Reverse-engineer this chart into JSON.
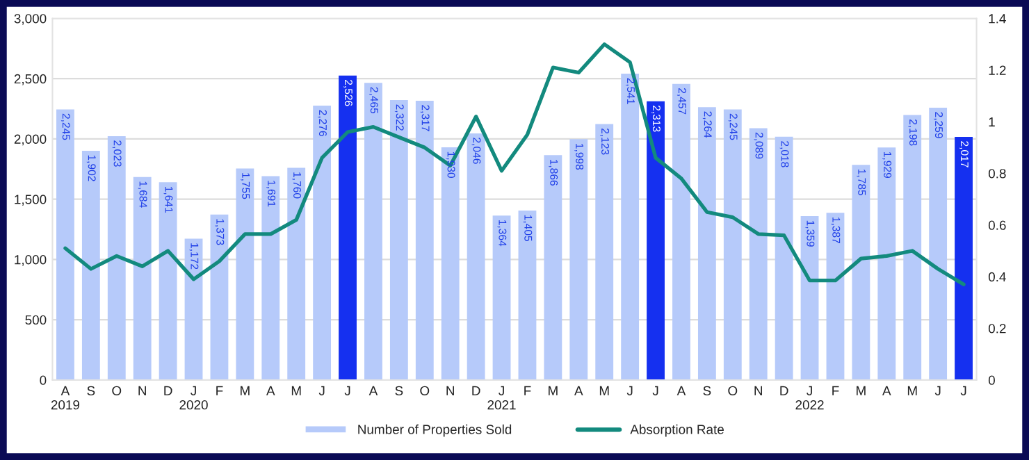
{
  "chart_data": {
    "type": "bar",
    "categories": [
      "A\n2019",
      "S",
      "O",
      "N",
      "D",
      "J\n2020",
      "F",
      "M",
      "A",
      "M",
      "J",
      "J",
      "A",
      "S",
      "O",
      "N",
      "D",
      "J\n2021",
      "F",
      "M",
      "A",
      "M",
      "J",
      "J",
      "A",
      "S",
      "O",
      "N",
      "D",
      "J\n2022",
      "F",
      "M",
      "A",
      "M",
      "J",
      "J"
    ],
    "series": [
      {
        "name": "Number of Properties Sold",
        "color": "#b6cafa",
        "colors": [
          "#b6cafa",
          "#b6cafa",
          "#b6cafa",
          "#b6cafa",
          "#b6cafa",
          "#b6cafa",
          "#b6cafa",
          "#b6cafa",
          "#b6cafa",
          "#b6cafa",
          "#b6cafa",
          "#1530f0",
          "#b6cafa",
          "#b6cafa",
          "#b6cafa",
          "#b6cafa",
          "#b6cafa",
          "#b6cafa",
          "#b6cafa",
          "#b6cafa",
          "#b6cafa",
          "#b6cafa",
          "#b6cafa",
          "#1530f0",
          "#b6cafa",
          "#b6cafa",
          "#b6cafa",
          "#b6cafa",
          "#b6cafa",
          "#b6cafa",
          "#b6cafa",
          "#b6cafa",
          "#b6cafa",
          "#b6cafa",
          "#b6cafa",
          "#1530f0"
        ],
        "values": [
          2245,
          1902,
          2023,
          1684,
          1641,
          1172,
          1373,
          1755,
          1691,
          1760,
          2276,
          2526,
          2465,
          2322,
          2317,
          1930,
          2046,
          1364,
          1405,
          1866,
          1998,
          2123,
          2541,
          2313,
          2457,
          2264,
          2245,
          2089,
          2018,
          1359,
          1387,
          1785,
          1929,
          2198,
          2259,
          2017
        ],
        "value_labels": [
          "2,245",
          "1,902",
          "2,023",
          "1,684",
          "1,641",
          "1,172",
          "1,373",
          "1,755",
          "1,691",
          "1,760",
          "2,276",
          "2,526",
          "2,465",
          "2,322",
          "2,317",
          "1,930",
          "2,046",
          "1,364",
          "1,405",
          "1,866",
          "1,998",
          "2,123",
          "2,541",
          "2,313",
          "2,457",
          "2,264",
          "2,245",
          "2,089",
          "2,018",
          "1,359",
          "1,387",
          "1,785",
          "1,929",
          "2,198",
          "2,259",
          "2,017"
        ]
      },
      {
        "type": "line",
        "name": "Absorption Rate",
        "color": "#138a7e",
        "axis": "y2",
        "values": [
          0.51,
          0.43,
          0.48,
          0.44,
          0.5,
          0.39,
          0.46,
          0.565,
          0.565,
          0.62,
          0.86,
          0.96,
          0.98,
          0.94,
          0.9,
          0.83,
          1.02,
          0.81,
          0.95,
          1.21,
          1.19,
          1.3,
          1.23,
          0.86,
          0.78,
          0.65,
          0.63,
          0.565,
          0.56,
          0.385,
          0.385,
          0.47,
          0.48,
          0.5,
          0.43,
          0.37
        ]
      }
    ],
    "ylim": [
      0,
      3000
    ],
    "yticks": [
      0,
      500,
      {
        "value": 1000,
        "label": "1,000"
      },
      {
        "value": 1500,
        "label": "1,500"
      },
      {
        "value": 2000,
        "label": "2,000"
      },
      {
        "value": 2500,
        "label": "2,500"
      },
      {
        "value": 3000,
        "label": "3,000"
      }
    ],
    "y2lim": [
      0,
      1.4
    ],
    "y2ticks": [
      0,
      0.2,
      0.4,
      0.6,
      0.8,
      1,
      1.2,
      1.4
    ],
    "grid": "y",
    "legend": "bottom",
    "marker": "none",
    "line_style": "solid"
  }
}
